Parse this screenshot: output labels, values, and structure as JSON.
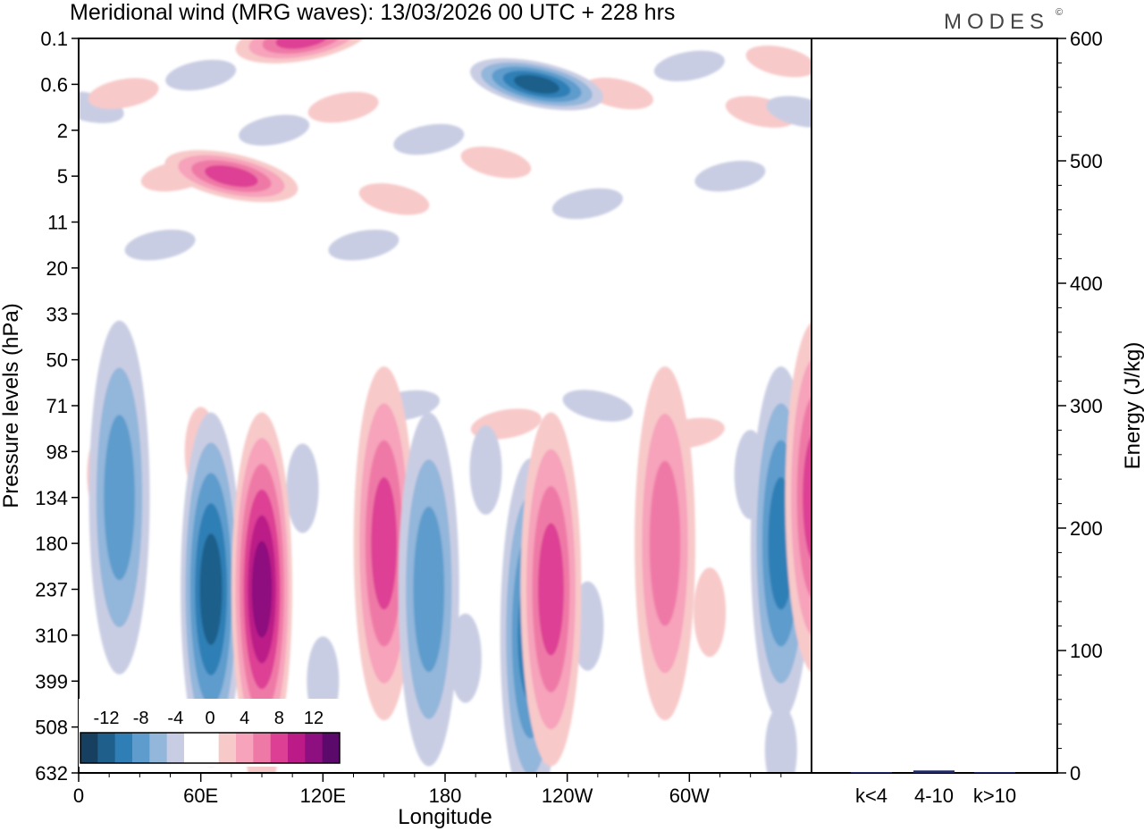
{
  "header": {
    "title": "Meridional wind (MRG waves):  13/03/2026  00 UTC  + 228 hrs",
    "brand": "MODES",
    "brand_mark": "©"
  },
  "chart_data": [
    {
      "type": "heatmap",
      "title": "Meridional wind (MRG waves)",
      "xlabel": "Longitude",
      "ylabel": "Pressure levels (hPa)",
      "x_ticks": [
        "0",
        "60E",
        "120E",
        "180",
        "120W",
        "60W"
      ],
      "x_tick_values": [
        0,
        60,
        120,
        180,
        240,
        300
      ],
      "xlim": [
        0,
        360
      ],
      "y_ticks": [
        "0.1",
        "0.6",
        "2",
        "5",
        "11",
        "20",
        "33",
        "50",
        "71",
        "98",
        "134",
        "180",
        "237",
        "310",
        "399",
        "508",
        "632"
      ],
      "colorbar": {
        "labels": [
          "-12",
          "-8",
          "-4",
          "0",
          "4",
          "8",
          "12"
        ],
        "levels": [
          -14,
          -12,
          -10,
          -8,
          -6,
          -4,
          -2,
          0,
          2,
          4,
          6,
          8,
          10,
          12,
          14
        ],
        "colors": [
          "#173f5f",
          "#1f5f8b",
          "#2f7fb6",
          "#5d9ccc",
          "#93b6db",
          "#c9cde3",
          "#ffffff",
          "#ffffff",
          "#f8c9c9",
          "#f6a3bb",
          "#ef79a6",
          "#dd3f94",
          "#bb1a87",
          "#8e0f7f",
          "#5b0a6c"
        ]
      },
      "features": [
        {
          "lon": 20,
          "level": "134",
          "value": -6
        },
        {
          "lon": 65,
          "level": "237",
          "value": -11
        },
        {
          "lon": 90,
          "level": "237",
          "value": 12
        },
        {
          "lon": 150,
          "level": "180",
          "value": 8
        },
        {
          "lon": 172,
          "level": "237",
          "value": -7
        },
        {
          "lon": 222,
          "level": "310",
          "value": -8
        },
        {
          "lon": 232,
          "level": "237",
          "value": 8
        },
        {
          "lon": 288,
          "level": "180",
          "value": 7
        },
        {
          "lon": 345,
          "level": "180",
          "value": -9
        },
        {
          "lon": 362,
          "level": "134",
          "value": 9
        },
        {
          "lon": 75,
          "level": "5",
          "value": 8
        },
        {
          "lon": 110,
          "level": "0.1",
          "value": 8
        },
        {
          "lon": 225,
          "level": "0.6",
          "value": -10
        }
      ]
    },
    {
      "type": "bar",
      "categories": [
        "k<4",
        "4-10",
        "k>10"
      ],
      "values": [
        0.5,
        2,
        0.5
      ],
      "ylabel": "Energy (J/kg)",
      "ylim": [
        0,
        600
      ],
      "y_ticks": [
        "0",
        "100",
        "200",
        "300",
        "400",
        "500",
        "600"
      ],
      "color": "#1f2a66"
    }
  ]
}
